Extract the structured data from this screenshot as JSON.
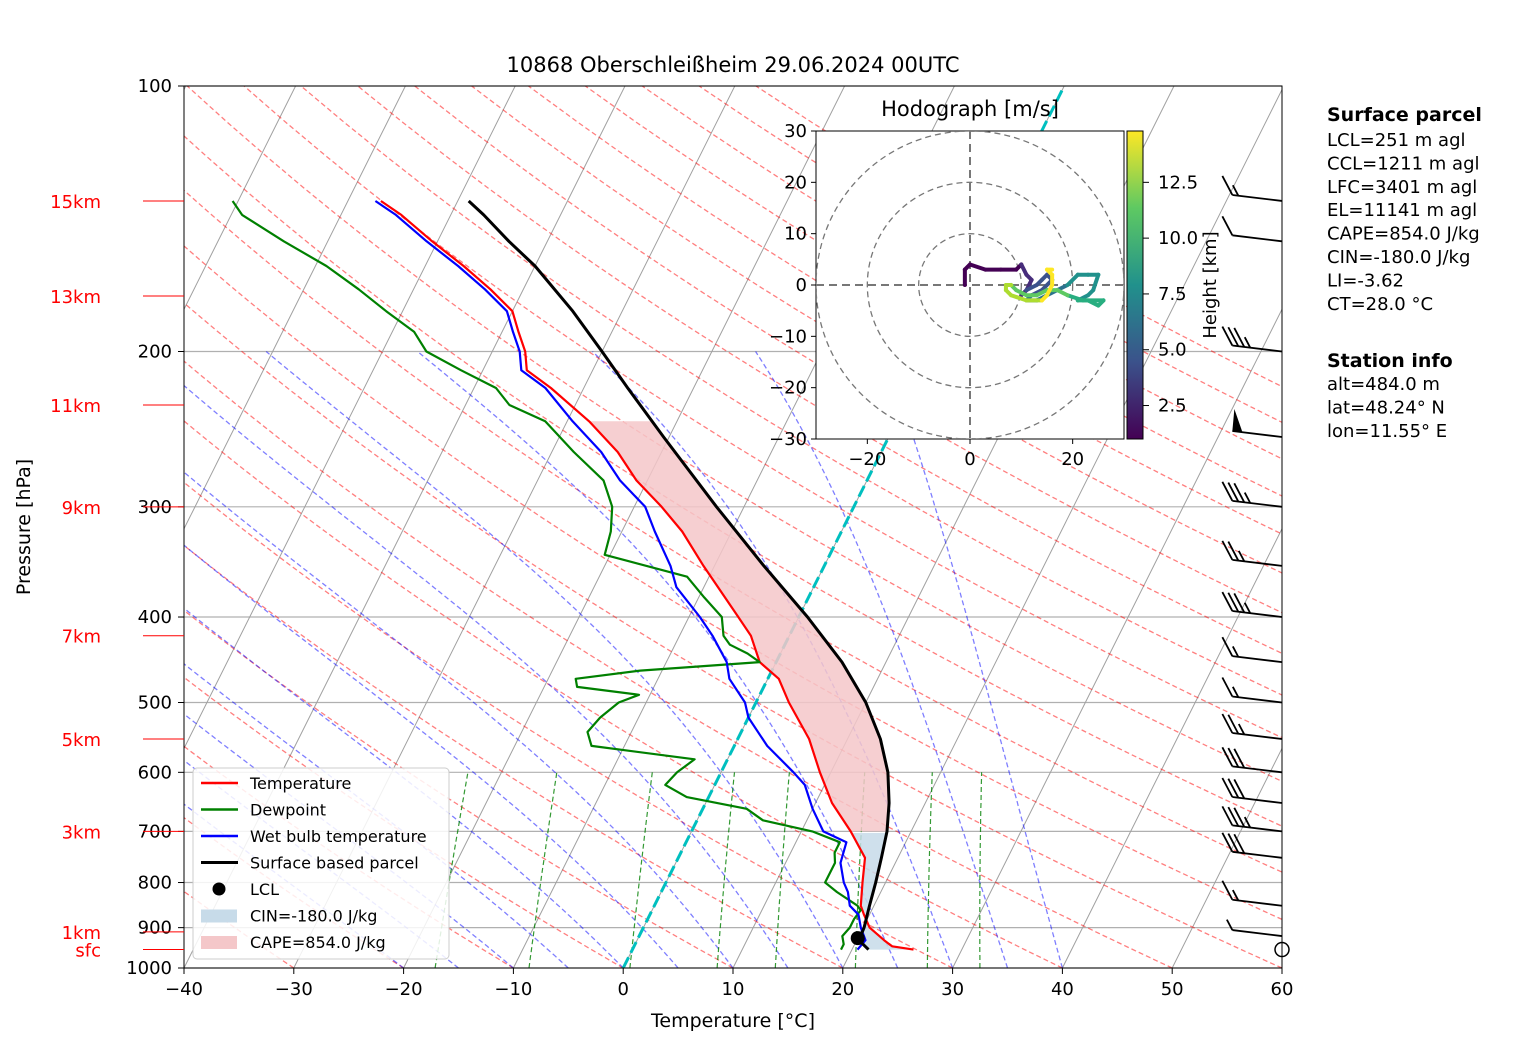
{
  "chart_data": {
    "type": "line",
    "title": "10868 Oberschleißheim 29.06.2024 00UTC",
    "xlabel": "Temperature [°C]",
    "ylabel": "Pressure [hPa]",
    "xlim": [
      -40,
      60
    ],
    "ylim": [
      1000,
      100
    ],
    "y_scale": "log",
    "grid": true,
    "x_ticks": [
      "−40",
      "−30",
      "−20",
      "−10",
      "0",
      "10",
      "20",
      "30",
      "40",
      "50",
      "60"
    ],
    "y_ticks": [
      "100",
      "200",
      "300",
      "400",
      "500",
      "600",
      "700",
      "800",
      "900",
      "1000"
    ],
    "height_labels": [
      {
        "label": "15km",
        "p": 135
      },
      {
        "label": "13km",
        "p": 173
      },
      {
        "label": "11km",
        "p": 230
      },
      {
        "label": "9km",
        "p": 300
      },
      {
        "label": "7km",
        "p": 420
      },
      {
        "label": "5km",
        "p": 550
      },
      {
        "label": "3km",
        "p": 700
      },
      {
        "label": "1km",
        "p": 910
      },
      {
        "label": "sfc",
        "p": 953
      }
    ],
    "series": [
      {
        "name": "Temperature",
        "color": "#ff0000",
        "points": [
          [
            953,
            25.6
          ],
          [
            945,
            23.5
          ],
          [
            930,
            22.5
          ],
          [
            900,
            20.6
          ],
          [
            870,
            19.5
          ],
          [
            850,
            18.8
          ],
          [
            800,
            17.9
          ],
          [
            750,
            17.0
          ],
          [
            700,
            14.5
          ],
          [
            650,
            11.5
          ],
          [
            600,
            9.0
          ],
          [
            550,
            6.5
          ],
          [
            500,
            3.0
          ],
          [
            470,
            1.0
          ],
          [
            450,
            -1.5
          ],
          [
            420,
            -3.5
          ],
          [
            400,
            -5.5
          ],
          [
            350,
            -11.0
          ],
          [
            320,
            -14.5
          ],
          [
            300,
            -17.5
          ],
          [
            280,
            -21.0
          ],
          [
            260,
            -24.0
          ],
          [
            240,
            -28.0
          ],
          [
            220,
            -33.0
          ],
          [
            210,
            -36.0
          ],
          [
            200,
            -37.0
          ],
          [
            190,
            -38.5
          ],
          [
            180,
            -40.0
          ],
          [
            170,
            -43.0
          ],
          [
            160,
            -46.5
          ],
          [
            150,
            -50.5
          ],
          [
            140,
            -54.5
          ],
          [
            135,
            -57.0
          ]
        ]
      },
      {
        "name": "Dewpoint",
        "color": "#008000",
        "points": [
          [
            953,
            19.0
          ],
          [
            940,
            19.0
          ],
          [
            920,
            18.5
          ],
          [
            900,
            18.8
          ],
          [
            880,
            18.8
          ],
          [
            860,
            19.0
          ],
          [
            850,
            18.5
          ],
          [
            820,
            16.0
          ],
          [
            800,
            14.5
          ],
          [
            760,
            14.5
          ],
          [
            740,
            14.0
          ],
          [
            720,
            14.0
          ],
          [
            700,
            11.0
          ],
          [
            680,
            6.0
          ],
          [
            660,
            4.0
          ],
          [
            640,
            -2.0
          ],
          [
            620,
            -4.5
          ],
          [
            600,
            -4.0
          ],
          [
            580,
            -3.0
          ],
          [
            560,
            -13.0
          ],
          [
            540,
            -14.0
          ],
          [
            520,
            -13.5
          ],
          [
            500,
            -12.5
          ],
          [
            490,
            -11.0
          ],
          [
            480,
            -17.0
          ],
          [
            470,
            -17.5
          ],
          [
            460,
            -12.0
          ],
          [
            450,
            -1.5
          ],
          [
            440,
            -3.0
          ],
          [
            430,
            -5.0
          ],
          [
            420,
            -6.0
          ],
          [
            400,
            -7.0
          ],
          [
            380,
            -9.5
          ],
          [
            360,
            -12.0
          ],
          [
            340,
            -20.5
          ],
          [
            320,
            -21.0
          ],
          [
            300,
            -22.0
          ],
          [
            280,
            -24.0
          ],
          [
            260,
            -28.0
          ],
          [
            240,
            -32.0
          ],
          [
            230,
            -36.0
          ],
          [
            220,
            -38.0
          ],
          [
            210,
            -42.0
          ],
          [
            200,
            -46.0
          ],
          [
            190,
            -48.0
          ],
          [
            180,
            -51.5
          ],
          [
            170,
            -55.0
          ],
          [
            160,
            -59.0
          ],
          [
            150,
            -64.0
          ],
          [
            140,
            -69.0
          ],
          [
            135,
            -70.5
          ]
        ]
      },
      {
        "name": "Wet bulb temperature",
        "color": "#0000ff",
        "points": [
          [
            953,
            20.5
          ],
          [
            930,
            20.8
          ],
          [
            900,
            19.8
          ],
          [
            870,
            19.0
          ],
          [
            850,
            17.8
          ],
          [
            820,
            17.0
          ],
          [
            800,
            16.2
          ],
          [
            760,
            15.0
          ],
          [
            720,
            14.6
          ],
          [
            700,
            12.0
          ],
          [
            660,
            10.0
          ],
          [
            620,
            8.2
          ],
          [
            600,
            6.6
          ],
          [
            560,
            3.0
          ],
          [
            520,
            0.0
          ],
          [
            500,
            -1.0
          ],
          [
            470,
            -3.5
          ],
          [
            450,
            -4.5
          ],
          [
            420,
            -7.0
          ],
          [
            400,
            -9.0
          ],
          [
            370,
            -12.5
          ],
          [
            350,
            -14.0
          ],
          [
            320,
            -17.0
          ],
          [
            300,
            -19.0
          ],
          [
            280,
            -22.5
          ],
          [
            260,
            -25.5
          ],
          [
            240,
            -29.5
          ],
          [
            220,
            -33.5
          ],
          [
            210,
            -36.5
          ],
          [
            200,
            -37.5
          ],
          [
            190,
            -39.0
          ],
          [
            180,
            -40.5
          ],
          [
            170,
            -43.5
          ],
          [
            160,
            -47.0
          ],
          [
            150,
            -51.0
          ],
          [
            140,
            -55.0
          ],
          [
            135,
            -57.5
          ]
        ]
      },
      {
        "name": "Surface based parcel",
        "color": "#000000",
        "points": [
          [
            953,
            21.5
          ],
          [
            930,
            20.2
          ],
          [
            900,
            20.1
          ],
          [
            850,
            19.6
          ],
          [
            800,
            19.1
          ],
          [
            750,
            18.5
          ],
          [
            700,
            17.8
          ],
          [
            650,
            16.7
          ],
          [
            600,
            15.2
          ],
          [
            550,
            13.0
          ],
          [
            500,
            10.0
          ],
          [
            450,
            6.0
          ],
          [
            400,
            0.8
          ],
          [
            350,
            -5.5
          ],
          [
            300,
            -12.5
          ],
          [
            250,
            -20.5
          ],
          [
            220,
            -26.0
          ],
          [
            200,
            -30.0
          ],
          [
            180,
            -34.5
          ],
          [
            160,
            -40.0
          ],
          [
            150,
            -43.5
          ],
          [
            140,
            -47.0
          ],
          [
            135,
            -49.0
          ]
        ]
      }
    ],
    "lcl": {
      "label": "LCL",
      "p": 925,
      "t": 20.0
    },
    "cape_label": "CAPE=854.0 J/kg",
    "cin_label": "CIN=-180.0 J/kg",
    "cape_color": "#f4c7c9",
    "cin_color": "#c7dbe9",
    "cape_range": [
      700,
      240
    ],
    "cin_range": [
      953,
      700
    ],
    "wind_barbs": [
      {
        "p": 953,
        "speed_kt": 0
      },
      {
        "p": 920,
        "speed_kt": 5
      },
      {
        "p": 850,
        "speed_kt": 15
      },
      {
        "p": 750,
        "speed_kt": 30
      },
      {
        "p": 700,
        "speed_kt": 35
      },
      {
        "p": 650,
        "speed_kt": 30
      },
      {
        "p": 600,
        "speed_kt": 30
      },
      {
        "p": 550,
        "speed_kt": 25
      },
      {
        "p": 500,
        "speed_kt": 15
      },
      {
        "p": 450,
        "speed_kt": 15
      },
      {
        "p": 400,
        "speed_kt": 35
      },
      {
        "p": 350,
        "speed_kt": 25
      },
      {
        "p": 300,
        "speed_kt": 35
      },
      {
        "p": 250,
        "speed_kt": 50
      },
      {
        "p": 200,
        "speed_kt": 35
      },
      {
        "p": 150,
        "speed_kt": 10
      },
      {
        "p": 135,
        "speed_kt": 15
      }
    ],
    "hodograph": {
      "title": "Hodograph [m/s]",
      "xlim": [
        -30,
        30
      ],
      "ylim": [
        -30,
        30
      ],
      "x_ticks": [
        "−20",
        "0",
        "20"
      ],
      "y_ticks": [
        "30",
        "20",
        "10",
        "0",
        "−10",
        "−20",
        "−30"
      ],
      "colorbar_label": "Height [km]",
      "colorbar_ticks": [
        "2.5",
        "5.0",
        "7.5",
        "10.0",
        "12.5"
      ],
      "points": [
        [
          -1,
          0
        ],
        [
          -1,
          3
        ],
        [
          0,
          4
        ],
        [
          3,
          3
        ],
        [
          6,
          3
        ],
        [
          9,
          3
        ],
        [
          10,
          4
        ],
        [
          11,
          2
        ],
        [
          12,
          1
        ],
        [
          11,
          -1
        ],
        [
          10,
          -2
        ],
        [
          11,
          -1
        ],
        [
          13,
          0
        ],
        [
          14,
          1
        ],
        [
          15,
          2
        ],
        [
          16,
          1
        ],
        [
          14,
          -1
        ],
        [
          12,
          -2
        ],
        [
          11,
          -3
        ],
        [
          13,
          -3
        ],
        [
          15,
          -2
        ],
        [
          17,
          -1
        ],
        [
          19,
          0
        ],
        [
          21,
          2
        ],
        [
          23,
          2
        ],
        [
          25,
          2
        ],
        [
          24,
          -1
        ],
        [
          23,
          -2
        ],
        [
          21,
          -3
        ],
        [
          23,
          -3
        ],
        [
          25,
          -4
        ],
        [
          26,
          -3
        ],
        [
          22,
          -3
        ],
        [
          19,
          -2
        ],
        [
          17,
          -1
        ],
        [
          15,
          -1
        ],
        [
          13,
          -2
        ],
        [
          11,
          -2
        ],
        [
          9,
          -1
        ],
        [
          8,
          0
        ],
        [
          7,
          0
        ],
        [
          7,
          -1
        ],
        [
          8,
          -2
        ],
        [
          11,
          -3
        ],
        [
          14,
          -3
        ],
        [
          15,
          -2
        ],
        [
          16,
          0
        ],
        [
          16,
          2
        ],
        [
          15,
          3
        ],
        [
          16,
          3
        ]
      ]
    },
    "legend": [
      "Temperature",
      "Dewpoint",
      "Wet bulb temperature",
      "Surface based parcel",
      "LCL",
      "CIN=-180.0 J/kg",
      "CAPE=854.0 J/kg"
    ]
  },
  "surface_parcel": {
    "heading": "Surface parcel",
    "lines": [
      "LCL=251 m agl",
      "CCL=1211 m agl",
      "LFC=3401 m agl",
      "EL=11141 m agl",
      "CAPE=854.0 J/kg",
      "CIN=-180.0 J/kg",
      "LI=-3.62",
      "CT=28.0 °C"
    ]
  },
  "station_info": {
    "heading": "Station info",
    "lines": [
      "alt=484.0 m",
      "lat=48.24° N",
      "lon=11.55° E"
    ]
  }
}
